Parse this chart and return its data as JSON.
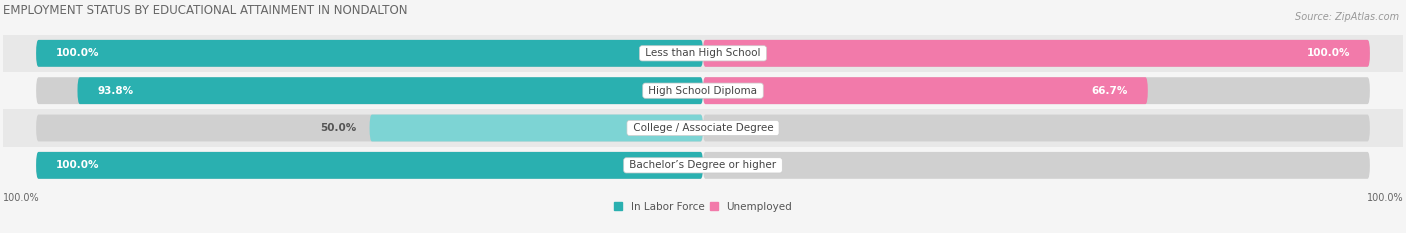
{
  "title": "EMPLOYMENT STATUS BY EDUCATIONAL ATTAINMENT IN NONDALTON",
  "source": "Source: ZipAtlas.com",
  "categories": [
    "Less than High School",
    "High School Diploma",
    "College / Associate Degree",
    "Bachelor’s Degree or higher"
  ],
  "labor_force": [
    100.0,
    93.8,
    50.0,
    100.0
  ],
  "unemployed": [
    100.0,
    66.7,
    0.0,
    0.0
  ],
  "color_labor_dark": "#2ab0b0",
  "color_labor_light": "#7dd4d4",
  "color_unemployed": "#f27aaa",
  "color_row_dark": "#e8e8e8",
  "color_row_light": "#f5f5f5",
  "color_label_box_bg": "#ffffff",
  "axis_left_label": "100.0%",
  "axis_right_label": "100.0%",
  "legend_labor": "In Labor Force",
  "legend_unemployed": "Unemployed",
  "title_fontsize": 8.5,
  "source_fontsize": 7,
  "value_fontsize": 7.5,
  "cat_fontsize": 7.5,
  "legend_fontsize": 7.5,
  "axis_label_fontsize": 7,
  "bar_height": 0.72,
  "figsize": [
    14.06,
    2.33
  ],
  "dpi": 100
}
